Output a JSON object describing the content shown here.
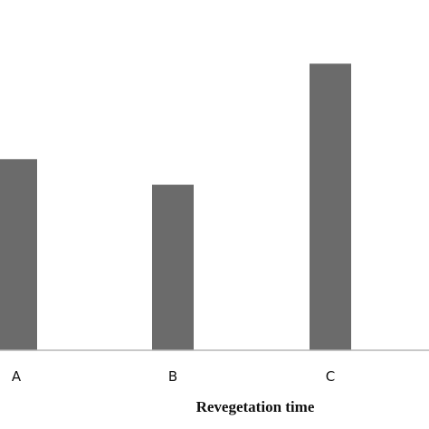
{
  "chart_data": {
    "type": "bar",
    "categories": [
      "A",
      "B",
      "C"
    ],
    "values": [
      0.6,
      0.52,
      0.9
    ],
    "title": "",
    "xlabel": "Revegetation time",
    "ylabel": "",
    "ylim": [
      0,
      1.1
    ],
    "grid": false,
    "bar_color": "#6b6b6b",
    "axis_color": "#b5b5b5"
  }
}
